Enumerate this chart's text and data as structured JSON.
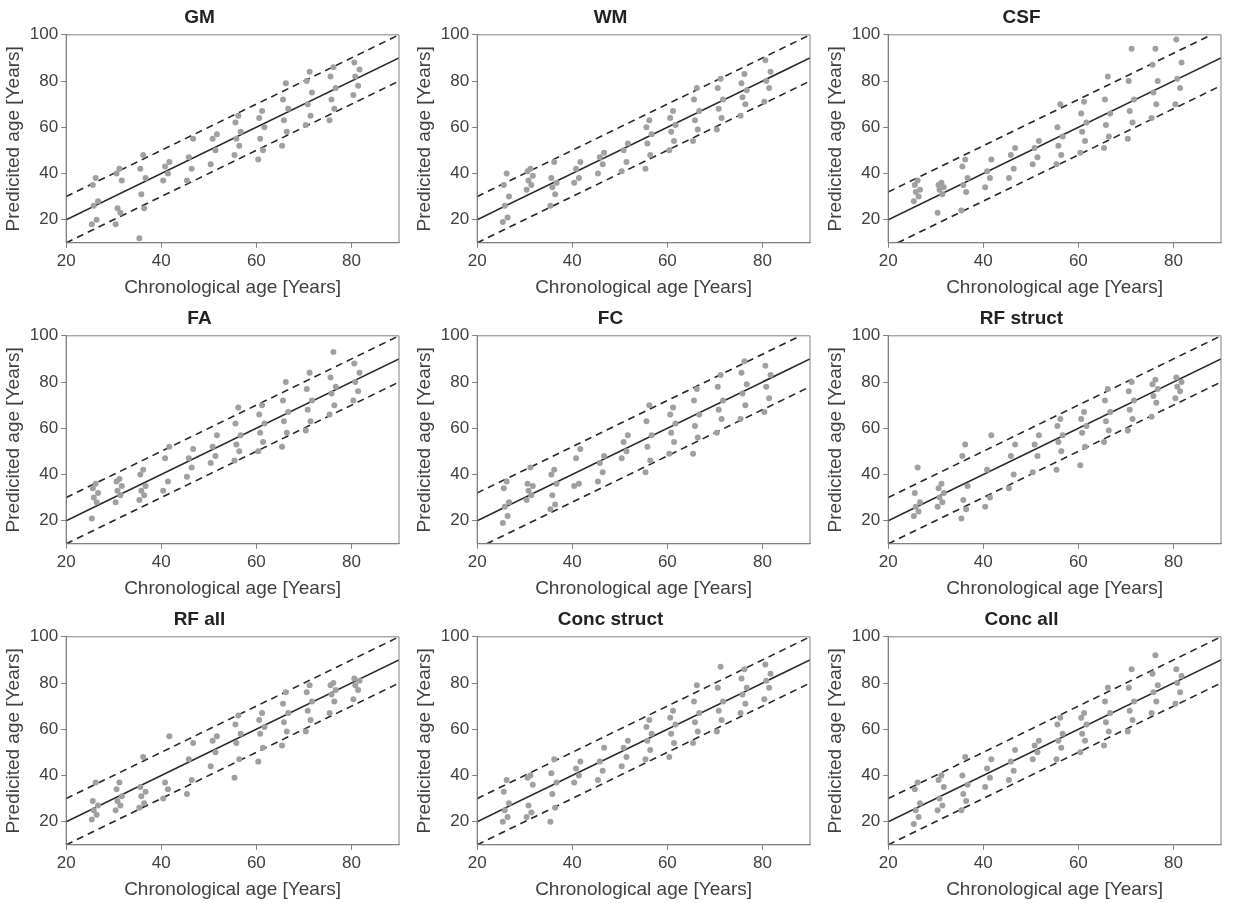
{
  "chart_data": [
    {
      "type": "scatter",
      "title": "GM",
      "xlabel": "Chronological age [Years]",
      "ylabel": "Predicited age [Years]",
      "xlim": [
        20,
        90
      ],
      "ylim": [
        10,
        100
      ],
      "xticks": [
        20,
        40,
        60,
        80
      ],
      "yticks": [
        20,
        40,
        60,
        80,
        100
      ],
      "marker": "circle",
      "series": [
        {
          "type": "scatter",
          "color": "#a0a0a0",
          "x": [
            25.4,
            26.4,
            25.8,
            26.7,
            25.6,
            26.2,
            30.4,
            31.4,
            30.8,
            31.7,
            30.6,
            31.2,
            35.4,
            36.4,
            35.8,
            36.7,
            35.6,
            36.2,
            40.4,
            41.4,
            40.8,
            41.7,
            45.4,
            46.4,
            45.8,
            46.7,
            50.4,
            51.4,
            50.8,
            51.7,
            55.4,
            56.4,
            55.8,
            56.7,
            55.6,
            56.2,
            60.4,
            61.4,
            60.8,
            61.7,
            60.6,
            61.2,
            65.4,
            66.4,
            65.8,
            66.7,
            65.6,
            66.2,
            70.4,
            71.4,
            70.8,
            71.7,
            70.6,
            71.2,
            75.4,
            76.4,
            75.8,
            76.7,
            75.6,
            76.2,
            80.4,
            81.4,
            80.8,
            81.7,
            80.6
          ],
          "values": [
            18,
            20,
            26,
            28,
            35,
            38,
            18,
            23,
            25,
            37,
            40,
            42,
            12,
            25,
            31,
            38,
            42,
            48,
            37,
            40,
            43,
            45,
            37,
            42,
            47,
            55,
            44,
            50,
            55,
            57,
            48,
            52,
            55,
            58,
            62,
            65,
            46,
            50,
            55,
            60,
            64,
            67,
            52,
            58,
            63,
            68,
            72,
            79,
            61,
            65,
            70,
            75,
            80,
            84,
            63,
            68,
            72,
            77,
            82,
            86,
            74,
            78,
            82,
            85,
            88
          ]
        },
        {
          "type": "line",
          "color": "#262626",
          "marker": "none",
          "line_style": "solid",
          "x": [
            20,
            90
          ],
          "values": [
            20,
            90
          ]
        },
        {
          "type": "line",
          "color": "#262626",
          "marker": "none",
          "line_style": "dashed",
          "x": [
            20,
            90
          ],
          "values": [
            30,
            100
          ]
        },
        {
          "type": "line",
          "color": "#262626",
          "marker": "none",
          "line_style": "dashed",
          "x": [
            20,
            90
          ],
          "values": [
            10,
            80
          ]
        }
      ]
    },
    {
      "type": "scatter",
      "title": "WM",
      "xlabel": "Chronological age [Years]",
      "ylabel": "Predicited age [Years]",
      "xlim": [
        20,
        90
      ],
      "ylim": [
        10,
        100
      ],
      "xticks": [
        20,
        40,
        60,
        80
      ],
      "yticks": [
        20,
        40,
        60,
        80,
        100
      ],
      "marker": "circle",
      "series": [
        {
          "type": "scatter",
          "color": "#a0a0a0",
          "x": [
            25.4,
            26.4,
            25.8,
            26.7,
            25.6,
            26.2,
            30.4,
            31.4,
            30.8,
            31.7,
            30.6,
            31.2,
            35.4,
            36.4,
            35.8,
            36.7,
            35.6,
            36.2,
            40.4,
            41.4,
            40.8,
            41.7,
            45.4,
            46.4,
            45.8,
            46.7,
            50.4,
            51.4,
            50.8,
            51.7,
            55.4,
            56.4,
            55.8,
            56.7,
            55.6,
            56.2,
            60.4,
            61.4,
            60.8,
            61.7,
            60.6,
            61.2,
            65.4,
            66.4,
            65.8,
            66.7,
            65.6,
            66.2,
            70.4,
            71.4,
            70.8,
            71.7,
            70.6,
            71.2,
            75.4,
            76.4,
            75.8,
            76.7,
            75.6,
            76.2,
            80.4,
            81.4,
            80.8,
            81.7,
            80.6
          ],
          "values": [
            19,
            21,
            26,
            30,
            35,
            40,
            33,
            35,
            37,
            39,
            41,
            42,
            26,
            31,
            34,
            36,
            38,
            45,
            36,
            38,
            42,
            45,
            40,
            44,
            47,
            49,
            41,
            45,
            50,
            53,
            42,
            48,
            53,
            57,
            60,
            63,
            50,
            54,
            58,
            61,
            64,
            67,
            54,
            59,
            63,
            67,
            72,
            77,
            59,
            64,
            68,
            72,
            77,
            81,
            65,
            70,
            73,
            76,
            79,
            83,
            71,
            77,
            80,
            84,
            89
          ]
        },
        {
          "type": "line",
          "color": "#262626",
          "marker": "none",
          "line_style": "solid",
          "x": [
            20,
            90
          ],
          "values": [
            20,
            90
          ]
        },
        {
          "type": "line",
          "color": "#262626",
          "marker": "none",
          "line_style": "dashed",
          "x": [
            20,
            90
          ],
          "values": [
            30,
            100
          ]
        },
        {
          "type": "line",
          "color": "#262626",
          "marker": "none",
          "line_style": "dashed",
          "x": [
            20,
            90
          ],
          "values": [
            10,
            80
          ]
        }
      ]
    },
    {
      "type": "scatter",
      "title": "CSF",
      "xlabel": "Chronological age [Years]",
      "ylabel": "Predicited age [Years]",
      "xlim": [
        20,
        90
      ],
      "ylim": [
        10,
        100
      ],
      "xticks": [
        20,
        40,
        60,
        80
      ],
      "yticks": [
        20,
        40,
        60,
        80,
        100
      ],
      "marker": "circle",
      "series": [
        {
          "type": "scatter",
          "color": "#a0a0a0",
          "x": [
            25.4,
            26.4,
            25.8,
            26.7,
            25.6,
            26.2,
            30.4,
            31.4,
            30.8,
            31.7,
            30.6,
            31.2,
            35.4,
            36.4,
            35.8,
            36.7,
            35.6,
            36.2,
            40.4,
            41.4,
            40.8,
            41.7,
            45.4,
            46.4,
            45.8,
            46.7,
            50.4,
            51.4,
            50.8,
            51.7,
            55.4,
            56.4,
            55.8,
            56.7,
            55.6,
            56.2,
            60.4,
            61.4,
            60.8,
            61.7,
            60.6,
            61.2,
            65.4,
            66.4,
            65.8,
            66.7,
            65.6,
            66.2,
            70.4,
            71.4,
            70.8,
            71.7,
            70.6,
            71.2,
            75.4,
            76.4,
            75.8,
            76.7,
            75.6,
            76.2,
            80.4,
            81.4,
            80.8,
            81.7,
            80.6
          ],
          "values": [
            28,
            30,
            32,
            33,
            35,
            37,
            23,
            31,
            33,
            34,
            35,
            36,
            24,
            32,
            35,
            38,
            43,
            46,
            34,
            38,
            41,
            46,
            38,
            42,
            48,
            51,
            44,
            47,
            51,
            54,
            44,
            48,
            52,
            56,
            60,
            70,
            49,
            54,
            58,
            62,
            66,
            71,
            51,
            56,
            61,
            66,
            72,
            82,
            55,
            62,
            67,
            72,
            80,
            94,
            64,
            70,
            75,
            80,
            87,
            94,
            70,
            77,
            81,
            88,
            98
          ]
        },
        {
          "type": "line",
          "color": "#262626",
          "marker": "none",
          "line_style": "solid",
          "x": [
            20,
            90
          ],
          "values": [
            20,
            90
          ]
        },
        {
          "type": "line",
          "color": "#262626",
          "marker": "none",
          "line_style": "dashed",
          "x": [
            20,
            88
          ],
          "values": [
            32,
            100
          ]
        },
        {
          "type": "line",
          "color": "#262626",
          "marker": "none",
          "line_style": "dashed",
          "x": [
            22,
            90
          ],
          "values": [
            10,
            78
          ]
        }
      ]
    },
    {
      "type": "scatter",
      "title": "FA",
      "xlabel": "Chronological age [Years]",
      "ylabel": "Predicited age [Years]",
      "xlim": [
        20,
        90
      ],
      "ylim": [
        10,
        100
      ],
      "xticks": [
        20,
        40,
        60,
        80
      ],
      "yticks": [
        20,
        40,
        60,
        80,
        100
      ],
      "marker": "circle",
      "series": [
        {
          "type": "scatter",
          "color": "#a0a0a0",
          "x": [
            25.4,
            26.4,
            25.8,
            26.7,
            25.6,
            26.2,
            30.4,
            31.4,
            30.8,
            31.7,
            30.6,
            31.2,
            35.4,
            36.4,
            35.8,
            36.7,
            35.6,
            36.2,
            40.4,
            41.4,
            40.8,
            41.7,
            45.4,
            46.4,
            45.8,
            46.7,
            50.4,
            51.4,
            50.8,
            51.7,
            55.4,
            56.4,
            55.8,
            56.7,
            55.6,
            56.2,
            60.4,
            61.4,
            60.8,
            61.7,
            60.6,
            61.2,
            65.4,
            66.4,
            65.8,
            66.7,
            65.6,
            66.2,
            70.4,
            71.4,
            70.8,
            71.7,
            70.6,
            71.2,
            75.4,
            76.4,
            75.8,
            76.7,
            75.6,
            76.2,
            80.4,
            81.4,
            80.8,
            81.7,
            80.6
          ],
          "values": [
            21,
            28,
            30,
            32,
            34,
            36,
            28,
            31,
            33,
            35,
            37,
            38,
            29,
            31,
            33,
            35,
            40,
            42,
            33,
            37,
            47,
            52,
            39,
            43,
            47,
            51,
            45,
            48,
            52,
            57,
            46,
            50,
            53,
            57,
            62,
            69,
            50,
            54,
            58,
            62,
            66,
            70,
            52,
            58,
            63,
            67,
            72,
            80,
            59,
            63,
            68,
            72,
            77,
            84,
            66,
            70,
            75,
            78,
            82,
            93,
            72,
            76,
            80,
            84,
            88
          ]
        },
        {
          "type": "line",
          "color": "#262626",
          "marker": "none",
          "line_style": "solid",
          "x": [
            20,
            90
          ],
          "values": [
            20,
            90
          ]
        },
        {
          "type": "line",
          "color": "#262626",
          "marker": "none",
          "line_style": "dashed",
          "x": [
            20,
            90
          ],
          "values": [
            30,
            100
          ]
        },
        {
          "type": "line",
          "color": "#262626",
          "marker": "none",
          "line_style": "dashed",
          "x": [
            20,
            90
          ],
          "values": [
            10,
            80
          ]
        }
      ]
    },
    {
      "type": "scatter",
      "title": "FC",
      "xlabel": "Chronological age [Years]",
      "ylabel": "Predicited age [Years]",
      "xlim": [
        20,
        90
      ],
      "ylim": [
        10,
        100
      ],
      "xticks": [
        20,
        40,
        60,
        80
      ],
      "yticks": [
        20,
        40,
        60,
        80,
        100
      ],
      "marker": "circle",
      "series": [
        {
          "type": "scatter",
          "color": "#a0a0a0",
          "x": [
            25.4,
            26.4,
            25.8,
            26.7,
            25.6,
            26.2,
            30.4,
            31.4,
            30.8,
            31.7,
            30.6,
            31.2,
            35.4,
            36.4,
            35.8,
            36.7,
            35.6,
            36.2,
            40.4,
            41.4,
            40.8,
            41.7,
            45.4,
            46.4,
            45.8,
            46.7,
            50.4,
            51.4,
            50.8,
            51.7,
            55.4,
            56.4,
            55.8,
            56.7,
            55.6,
            56.2,
            60.4,
            61.4,
            60.8,
            61.7,
            60.6,
            61.2,
            65.4,
            66.4,
            65.8,
            66.7,
            65.6,
            66.2,
            70.4,
            71.4,
            70.8,
            71.7,
            70.6,
            71.2,
            75.4,
            76.4,
            75.8,
            76.7,
            75.6,
            76.2,
            80.4,
            81.4,
            80.8,
            81.7,
            80.6
          ],
          "values": [
            19,
            22,
            26,
            28,
            34,
            37,
            29,
            31,
            33,
            35,
            36,
            43,
            25,
            27,
            31,
            36,
            40,
            42,
            35,
            36,
            47,
            51,
            37,
            41,
            45,
            48,
            47,
            50,
            54,
            57,
            41,
            46,
            52,
            57,
            63,
            70,
            49,
            54,
            58,
            62,
            66,
            69,
            49,
            56,
            61,
            66,
            72,
            77,
            58,
            64,
            68,
            72,
            78,
            83,
            64,
            70,
            75,
            79,
            84,
            89,
            67,
            73,
            78,
            83,
            87
          ]
        },
        {
          "type": "line",
          "color": "#262626",
          "marker": "none",
          "line_style": "solid",
          "x": [
            20,
            90
          ],
          "values": [
            20,
            90
          ]
        },
        {
          "type": "line",
          "color": "#262626",
          "marker": "none",
          "line_style": "dashed",
          "x": [
            20,
            88
          ],
          "values": [
            32,
            100
          ]
        },
        {
          "type": "line",
          "color": "#262626",
          "marker": "none",
          "line_style": "dashed",
          "x": [
            22,
            90
          ],
          "values": [
            10,
            78
          ]
        }
      ]
    },
    {
      "type": "scatter",
      "title": "RF struct",
      "xlabel": "Chronological age [Years]",
      "ylabel": "Predicited age [Years]",
      "xlim": [
        20,
        90
      ],
      "ylim": [
        10,
        100
      ],
      "xticks": [
        20,
        40,
        60,
        80
      ],
      "yticks": [
        20,
        40,
        60,
        80,
        100
      ],
      "marker": "circle",
      "series": [
        {
          "type": "scatter",
          "color": "#a0a0a0",
          "x": [
            25.4,
            26.4,
            25.8,
            26.7,
            25.6,
            26.2,
            30.4,
            31.4,
            30.8,
            31.7,
            30.6,
            31.2,
            35.4,
            36.4,
            35.8,
            36.7,
            35.6,
            36.2,
            40.4,
            41.4,
            40.8,
            41.7,
            45.4,
            46.4,
            45.8,
            46.7,
            50.4,
            51.4,
            50.8,
            51.7,
            55.4,
            56.4,
            55.8,
            56.7,
            55.6,
            56.2,
            60.4,
            61.4,
            60.8,
            61.7,
            60.6,
            61.2,
            65.4,
            66.4,
            65.8,
            66.7,
            65.6,
            66.2,
            70.4,
            71.4,
            70.8,
            71.7,
            70.6,
            71.2,
            75.4,
            76.4,
            75.8,
            76.7,
            75.6,
            76.2,
            80.4,
            81.4,
            80.8,
            81.7,
            80.6
          ],
          "values": [
            22,
            24,
            26,
            28,
            32,
            43,
            26,
            28,
            30,
            32,
            34,
            36,
            21,
            25,
            29,
            35,
            48,
            53,
            26,
            30,
            42,
            57,
            34,
            40,
            48,
            53,
            41,
            48,
            53,
            57,
            42,
            50,
            54,
            57,
            61,
            64,
            44,
            52,
            58,
            61,
            64,
            67,
            54,
            59,
            63,
            67,
            72,
            77,
            59,
            64,
            68,
            72,
            76,
            80,
            65,
            71,
            74,
            77,
            79,
            81,
            73,
            76,
            78,
            80,
            82
          ]
        },
        {
          "type": "line",
          "color": "#262626",
          "marker": "none",
          "line_style": "solid",
          "x": [
            20,
            90
          ],
          "values": [
            20,
            90
          ]
        },
        {
          "type": "line",
          "color": "#262626",
          "marker": "none",
          "line_style": "dashed",
          "x": [
            20,
            90
          ],
          "values": [
            30,
            100
          ]
        },
        {
          "type": "line",
          "color": "#262626",
          "marker": "none",
          "line_style": "dashed",
          "x": [
            20,
            90
          ],
          "values": [
            10,
            80
          ]
        }
      ]
    },
    {
      "type": "scatter",
      "title": "RF all",
      "xlabel": "Chronological age [Years]",
      "ylabel": "Predicited age [Years]",
      "xlim": [
        20,
        90
      ],
      "ylim": [
        10,
        100
      ],
      "xticks": [
        20,
        40,
        60,
        80
      ],
      "yticks": [
        20,
        40,
        60,
        80,
        100
      ],
      "marker": "circle",
      "series": [
        {
          "type": "scatter",
          "color": "#a0a0a0",
          "x": [
            25.4,
            26.4,
            25.8,
            26.7,
            25.6,
            26.2,
            30.4,
            31.4,
            30.8,
            31.7,
            30.6,
            31.2,
            35.4,
            36.4,
            35.8,
            36.7,
            35.6,
            36.2,
            40.4,
            41.4,
            40.8,
            41.7,
            45.4,
            46.4,
            45.8,
            46.7,
            50.4,
            51.4,
            50.8,
            51.7,
            55.4,
            56.4,
            55.8,
            56.7,
            55.6,
            56.2,
            60.4,
            61.4,
            60.8,
            61.7,
            60.6,
            61.2,
            65.4,
            66.4,
            65.8,
            66.7,
            65.6,
            66.2,
            70.4,
            71.4,
            70.8,
            71.7,
            70.6,
            71.2,
            75.4,
            76.4,
            75.8,
            76.7,
            75.6,
            76.2,
            80.4,
            81.4,
            80.8,
            81.7,
            80.6
          ],
          "values": [
            21,
            23,
            25,
            27,
            29,
            37,
            25,
            27,
            29,
            31,
            34,
            37,
            26,
            28,
            31,
            33,
            35,
            48,
            30,
            34,
            37,
            57,
            32,
            38,
            47,
            54,
            44,
            50,
            55,
            57,
            39,
            47,
            54,
            58,
            62,
            66,
            46,
            52,
            58,
            61,
            64,
            67,
            53,
            59,
            63,
            67,
            71,
            76,
            59,
            64,
            68,
            72,
            76,
            79,
            67,
            72,
            75,
            77,
            79,
            80,
            73,
            77,
            79,
            81,
            82
          ]
        },
        {
          "type": "line",
          "color": "#262626",
          "marker": "none",
          "line_style": "solid",
          "x": [
            20,
            90
          ],
          "values": [
            20,
            90
          ]
        },
        {
          "type": "line",
          "color": "#262626",
          "marker": "none",
          "line_style": "dashed",
          "x": [
            20,
            90
          ],
          "values": [
            30,
            100
          ]
        },
        {
          "type": "line",
          "color": "#262626",
          "marker": "none",
          "line_style": "dashed",
          "x": [
            20,
            90
          ],
          "values": [
            10,
            80
          ]
        }
      ]
    },
    {
      "type": "scatter",
      "title": "Conc struct",
      "xlabel": "Chronological age [Years]",
      "ylabel": "Predicited age [Years]",
      "xlim": [
        20,
        90
      ],
      "ylim": [
        10,
        100
      ],
      "xticks": [
        20,
        40,
        60,
        80
      ],
      "yticks": [
        20,
        40,
        60,
        80,
        100
      ],
      "marker": "circle",
      "series": [
        {
          "type": "scatter",
          "color": "#a0a0a0",
          "x": [
            25.4,
            26.4,
            25.8,
            26.7,
            25.6,
            26.2,
            30.4,
            31.4,
            30.8,
            31.7,
            30.6,
            31.2,
            35.4,
            36.4,
            35.8,
            36.7,
            35.6,
            36.2,
            40.4,
            41.4,
            40.8,
            41.7,
            45.4,
            46.4,
            45.8,
            46.7,
            50.4,
            51.4,
            50.8,
            51.7,
            55.4,
            56.4,
            55.8,
            56.7,
            55.6,
            56.2,
            60.4,
            61.4,
            60.8,
            61.7,
            60.6,
            61.2,
            65.4,
            66.4,
            65.8,
            66.7,
            65.6,
            66.2,
            70.4,
            71.4,
            70.8,
            71.7,
            70.6,
            71.2,
            75.4,
            76.4,
            75.8,
            76.7,
            75.6,
            76.2,
            80.4,
            81.4,
            80.8,
            81.7,
            80.6
          ],
          "values": [
            20,
            22,
            25,
            28,
            33,
            38,
            22,
            24,
            27,
            36,
            39,
            40,
            20,
            26,
            32,
            37,
            41,
            47,
            37,
            40,
            43,
            46,
            38,
            42,
            46,
            52,
            44,
            48,
            52,
            55,
            47,
            51,
            55,
            58,
            61,
            64,
            48,
            54,
            58,
            62,
            65,
            68,
            54,
            59,
            63,
            67,
            72,
            79,
            59,
            64,
            68,
            72,
            78,
            87,
            67,
            71,
            75,
            78,
            82,
            86,
            73,
            78,
            81,
            84,
            88
          ]
        },
        {
          "type": "line",
          "color": "#262626",
          "marker": "none",
          "line_style": "solid",
          "x": [
            20,
            90
          ],
          "values": [
            20,
            90
          ]
        },
        {
          "type": "line",
          "color": "#262626",
          "marker": "none",
          "line_style": "dashed",
          "x": [
            20,
            90
          ],
          "values": [
            30,
            100
          ]
        },
        {
          "type": "line",
          "color": "#262626",
          "marker": "none",
          "line_style": "dashed",
          "x": [
            20,
            90
          ],
          "values": [
            10,
            80
          ]
        }
      ]
    },
    {
      "type": "scatter",
      "title": "Conc all",
      "xlabel": "Chronological age [Years]",
      "ylabel": "Predicited age [Years]",
      "xlim": [
        20,
        90
      ],
      "ylim": [
        10,
        100
      ],
      "xticks": [
        20,
        40,
        60,
        80
      ],
      "yticks": [
        20,
        40,
        60,
        80,
        100
      ],
      "marker": "circle",
      "series": [
        {
          "type": "scatter",
          "color": "#a0a0a0",
          "x": [
            25.4,
            26.4,
            25.8,
            26.7,
            25.6,
            26.2,
            30.4,
            31.4,
            30.8,
            31.7,
            30.6,
            31.2,
            35.4,
            36.4,
            35.8,
            36.7,
            35.6,
            36.2,
            40.4,
            41.4,
            40.8,
            41.7,
            45.4,
            46.4,
            45.8,
            46.7,
            50.4,
            51.4,
            50.8,
            51.7,
            55.4,
            56.4,
            55.8,
            56.7,
            55.6,
            56.2,
            60.4,
            61.4,
            60.8,
            61.7,
            60.6,
            61.2,
            65.4,
            66.4,
            65.8,
            66.7,
            65.6,
            66.2,
            70.4,
            71.4,
            70.8,
            71.7,
            70.6,
            71.2,
            75.4,
            76.4,
            75.8,
            76.7,
            75.6,
            76.2,
            80.4,
            81.4,
            80.8,
            81.7,
            80.6
          ],
          "values": [
            19,
            22,
            25,
            28,
            34,
            37,
            25,
            27,
            30,
            35,
            38,
            40,
            25,
            29,
            32,
            36,
            40,
            48,
            35,
            39,
            43,
            47,
            38,
            42,
            46,
            51,
            47,
            50,
            53,
            55,
            47,
            52,
            55,
            58,
            62,
            65,
            50,
            55,
            58,
            62,
            65,
            67,
            53,
            59,
            63,
            67,
            72,
            78,
            59,
            64,
            68,
            72,
            78,
            86,
            67,
            72,
            76,
            79,
            84,
            92,
            71,
            76,
            80,
            83,
            86
          ]
        },
        {
          "type": "line",
          "color": "#262626",
          "marker": "none",
          "line_style": "solid",
          "x": [
            20,
            90
          ],
          "values": [
            20,
            90
          ]
        },
        {
          "type": "line",
          "color": "#262626",
          "marker": "none",
          "line_style": "dashed",
          "x": [
            20,
            90
          ],
          "values": [
            30,
            100
          ]
        },
        {
          "type": "line",
          "color": "#262626",
          "marker": "none",
          "line_style": "dashed",
          "x": [
            20,
            90
          ],
          "values": [
            10,
            80
          ]
        }
      ]
    }
  ]
}
